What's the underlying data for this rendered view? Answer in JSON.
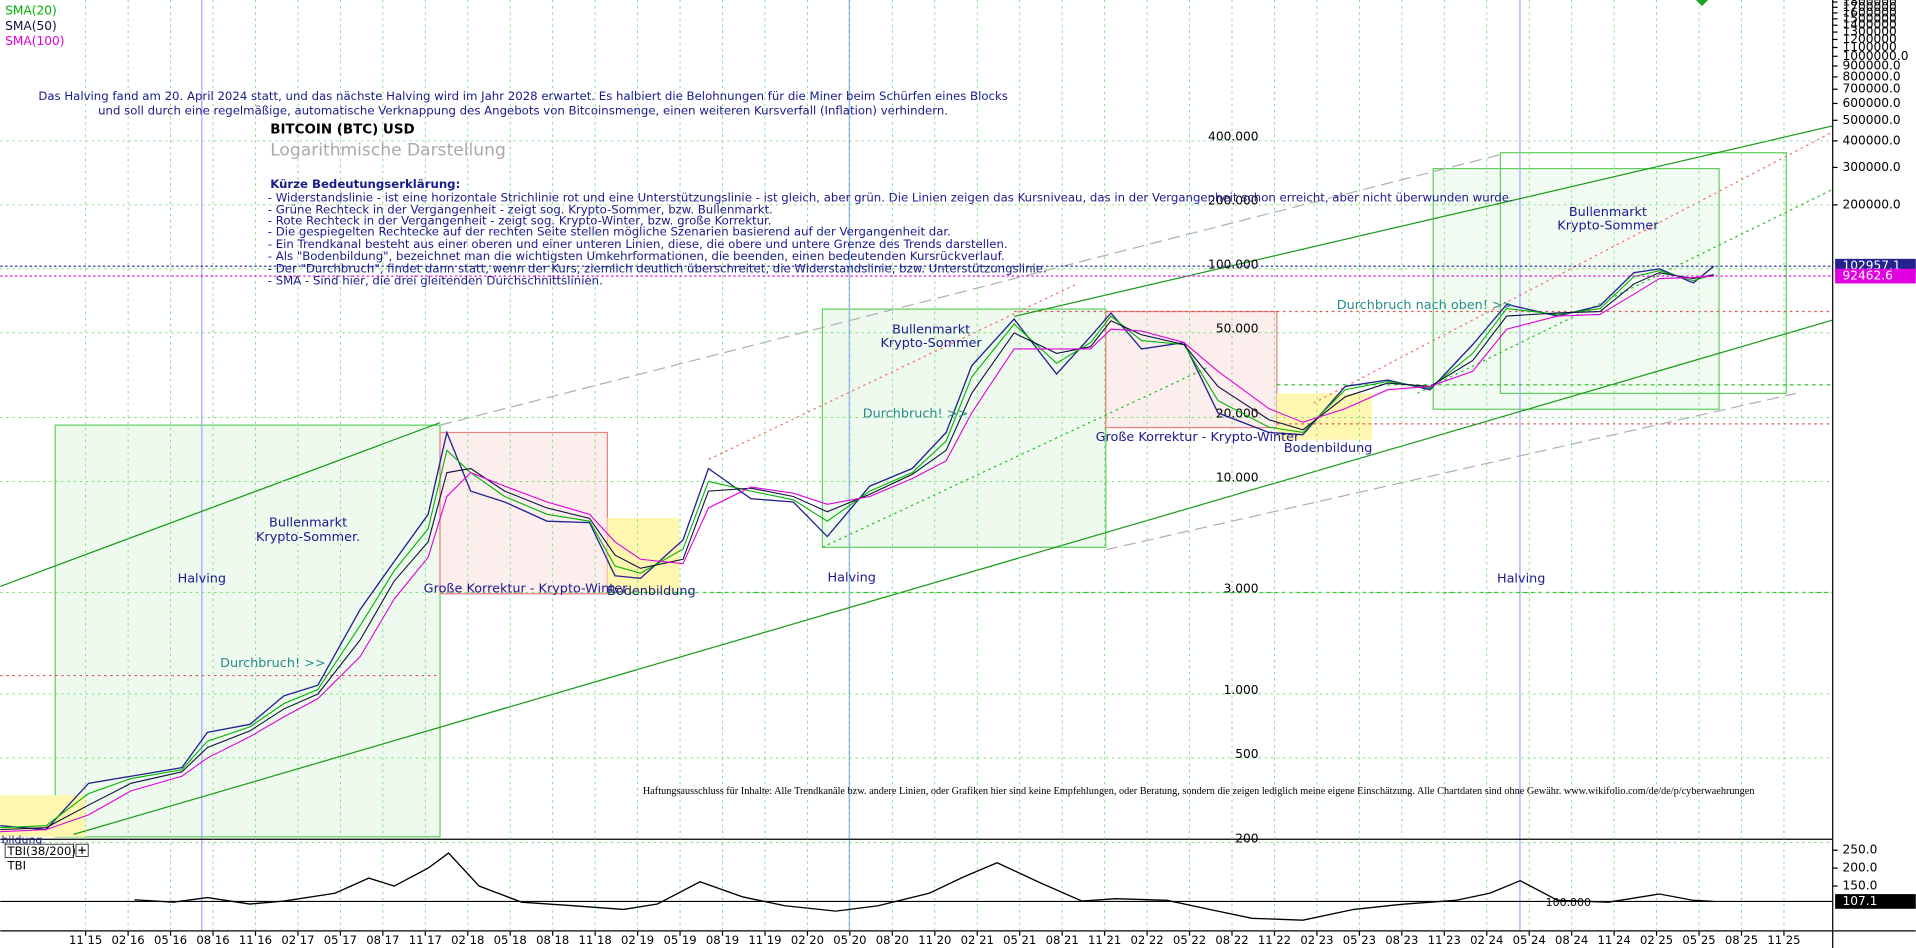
{
  "chart_data": [
    {
      "type": "line",
      "title": "BITCOIN (BTC) USD",
      "subtitle": "Logarithmische Darstellung",
      "log_scale": true,
      "grid": true,
      "xlim": [
        2015.33,
        2026.12
      ],
      "ylim": [
        210,
        1840000
      ],
      "xticks": [
        {
          "value": 2015.833,
          "label": "11 15"
        },
        {
          "value": 2016.083,
          "label": "02 16"
        },
        {
          "value": 2016.333,
          "label": "05 16"
        },
        {
          "value": 2016.583,
          "label": "08 16"
        },
        {
          "value": 2016.833,
          "label": "11 16"
        },
        {
          "value": 2017.083,
          "label": "02 17"
        },
        {
          "value": 2017.333,
          "label": "05 17"
        },
        {
          "value": 2017.583,
          "label": "08 17"
        },
        {
          "value": 2017.833,
          "label": "11 17"
        },
        {
          "value": 2018.083,
          "label": "02 18"
        },
        {
          "value": 2018.333,
          "label": "05 18"
        },
        {
          "value": 2018.583,
          "label": "08 18"
        },
        {
          "value": 2018.833,
          "label": "11 18"
        },
        {
          "value": 2019.083,
          "label": "02 19"
        },
        {
          "value": 2019.333,
          "label": "05 19"
        },
        {
          "value": 2019.583,
          "label": "08 19"
        },
        {
          "value": 2019.833,
          "label": "11 19"
        },
        {
          "value": 2020.083,
          "label": "02 20"
        },
        {
          "value": 2020.333,
          "label": "05 20"
        },
        {
          "value": 2020.583,
          "label": "08 20"
        },
        {
          "value": 2020.833,
          "label": "11 20"
        },
        {
          "value": 2021.083,
          "label": "02 21"
        },
        {
          "value": 2021.333,
          "label": "05 21"
        },
        {
          "value": 2021.583,
          "label": "08 21"
        },
        {
          "value": 2021.833,
          "label": "11 21"
        },
        {
          "value": 2022.083,
          "label": "02 22"
        },
        {
          "value": 2022.333,
          "label": "05 22"
        },
        {
          "value": 2022.583,
          "label": "08 22"
        },
        {
          "value": 2022.833,
          "label": "11 22"
        },
        {
          "value": 2023.083,
          "label": "02 23"
        },
        {
          "value": 2023.333,
          "label": "05 23"
        },
        {
          "value": 2023.583,
          "label": "08 23"
        },
        {
          "value": 2023.833,
          "label": "11 23"
        },
        {
          "value": 2024.083,
          "label": "02 24"
        },
        {
          "value": 2024.333,
          "label": "05 24"
        },
        {
          "value": 2024.583,
          "label": "08 24"
        },
        {
          "value": 2024.833,
          "label": "11 24"
        },
        {
          "value": 2025.083,
          "label": "02 25"
        },
        {
          "value": 2025.333,
          "label": "05 25"
        },
        {
          "value": 2025.583,
          "label": "08 25"
        },
        {
          "value": 2025.833,
          "label": "11 25"
        }
      ],
      "yticks": [
        {
          "value": 400000,
          "label": "400.000"
        },
        {
          "value": 200000,
          "label": "200.000"
        },
        {
          "value": 100000,
          "label": "100.000"
        },
        {
          "value": 50000,
          "label": "50.000"
        },
        {
          "value": 20000,
          "label": "20.000"
        },
        {
          "value": 10000,
          "label": "10.000"
        },
        {
          "value": 3000,
          "label": "3.000"
        },
        {
          "value": 1000,
          "label": "1.000"
        },
        500,
        200
      ],
      "y2ticks": [
        1900000,
        1800000,
        1700000,
        1600000,
        1500000,
        1400000,
        1300000,
        1200000,
        1100000,
        {
          "value": 1000000,
          "label": "1000000.0"
        },
        {
          "value": 900000,
          "label": "900000.0"
        },
        {
          "value": 800000,
          "label": "800000.0"
        },
        {
          "value": 700000,
          "label": "700000.0"
        },
        {
          "value": 600000,
          "label": "600000.0"
        },
        {
          "value": 500000,
          "label": "500000.0"
        },
        {
          "value": 400000,
          "label": "400000.0"
        },
        {
          "value": 300000,
          "label": "300000.0"
        },
        {
          "value": 200000,
          "label": "200000.0"
        }
      ],
      "x": [
        2015.33,
        2015.6,
        2015.85,
        2016.1,
        2016.4,
        2016.55,
        2016.8,
        2017.0,
        2017.2,
        2017.45,
        2017.65,
        2017.85,
        2017.96,
        2018.1,
        2018.3,
        2018.55,
        2018.8,
        2018.95,
        2019.1,
        2019.35,
        2019.5,
        2019.75,
        2020.0,
        2020.2,
        2020.45,
        2020.7,
        2020.9,
        2021.05,
        2021.3,
        2021.55,
        2021.75,
        2021.87,
        2022.05,
        2022.3,
        2022.5,
        2022.8,
        2023.0,
        2023.25,
        2023.5,
        2023.75,
        2024.0,
        2024.2,
        2024.5,
        2024.75,
        2024.95,
        2025.1,
        2025.3,
        2025.42
      ],
      "series": [
        {
          "color": "#23238f",
          "last_value_box": true,
          "values": [
            240,
            230,
            380,
            410,
            450,
            660,
            720,
            980,
            1100,
            2500,
            4200,
            7000,
            17000,
            9000,
            8000,
            6500,
            6400,
            3600,
            3500,
            5300,
            11500,
            8300,
            8000,
            5500,
            9500,
            11500,
            17000,
            35000,
            58000,
            32000,
            48000,
            62000,
            42000,
            45000,
            21000,
            17000,
            16600,
            28000,
            30000,
            27000,
            44000,
            68000,
            60000,
            67000,
            96000,
            100000,
            86000,
            102957.1
          ]
        },
        {
          "name": "SMA(20)",
          "color": "#00b400",
          "last_value_box": false,
          "values": [
            235,
            240,
            340,
            400,
            440,
            600,
            700,
            900,
            1050,
            2100,
            3800,
            6000,
            14000,
            11000,
            8500,
            7000,
            6500,
            4000,
            3700,
            4800,
            10000,
            9000,
            8200,
            6500,
            9000,
            11000,
            15500,
            31000,
            55000,
            36000,
            45000,
            60000,
            46000,
            44000,
            24000,
            18000,
            17000,
            27000,
            29500,
            27500,
            40000,
            65000,
            61000,
            65000,
            92000,
            98000,
            88000,
            94000
          ]
        },
        {
          "name": "SMA(50)",
          "color": "#101040",
          "last_value_box": false,
          "values": [
            230,
            235,
            300,
            380,
            430,
            560,
            670,
            850,
            1000,
            1800,
            3400,
            5200,
            11000,
            11500,
            9000,
            7500,
            6700,
            4500,
            3900,
            4300,
            9000,
            9300,
            8500,
            7200,
            8700,
            10800,
            14000,
            26000,
            50000,
            40000,
            43000,
            57000,
            49000,
            44000,
            28000,
            19500,
            17500,
            25000,
            29000,
            28000,
            37000,
            60000,
            62000,
            63000,
            85000,
            96000,
            90000,
            94000
          ]
        },
        {
          "name": "SMA(100)",
          "color": "#e000e0",
          "last_value_box": true,
          "values": [
            225,
            230,
            270,
            350,
            410,
            500,
            630,
            780,
            950,
            1500,
            2800,
            4400,
            8500,
            11000,
            9500,
            8000,
            7000,
            5200,
            4300,
            4100,
            7500,
            9400,
            8800,
            7800,
            8500,
            10300,
            12500,
            21000,
            42000,
            42000,
            42000,
            52000,
            51000,
            45000,
            33000,
            22000,
            19000,
            22000,
            27000,
            28000,
            33000,
            52000,
            60000,
            61000,
            76000,
            90000,
            91000,
            92462.6
          ]
        }
      ]
    },
    {
      "type": "line",
      "indicator": "TBI",
      "log_scale": false,
      "xlim": [
        2015.33,
        2026.12
      ],
      "ylim": [
        25,
        277
      ],
      "yticks": [
        {
          "value": 250,
          "label": "250.0"
        },
        {
          "value": 200,
          "label": "200.0"
        },
        {
          "value": 150,
          "label": "150.0"
        }
      ],
      "x": [
        2016.12,
        2016.35,
        2016.55,
        2016.8,
        2017.0,
        2017.3,
        2017.5,
        2017.65,
        2017.85,
        2017.97,
        2018.15,
        2018.4,
        2018.7,
        2019.0,
        2019.2,
        2019.45,
        2019.7,
        2019.95,
        2020.25,
        2020.5,
        2020.8,
        2021.0,
        2021.2,
        2021.45,
        2021.7,
        2021.9,
        2022.2,
        2022.45,
        2022.7,
        2023.0,
        2023.3,
        2023.6,
        2023.9,
        2024.1,
        2024.28,
        2024.5,
        2024.8,
        2025.1,
        2025.3,
        2025.42
      ],
      "series": [
        {
          "name": "TBI(38/200)",
          "color": "#000000",
          "last_value_box": true,
          "values": [
            112,
            105,
            118,
            100,
            108,
            130,
            172,
            150,
            200,
            242,
            150,
            105,
            95,
            85,
            100,
            162,
            120,
            95,
            80,
            95,
            130,
            175,
            215,
            160,
            108,
            115,
            110,
            85,
            60,
            55,
            85,
            100,
            110,
            130,
            165,
            110,
            105,
            128,
            110,
            107.1
          ]
        }
      ],
      "level_label": "100.000"
    }
  ],
  "notes": {
    "halving": [
      "Das Halving fand am 20. April 2024 statt, und das nächste Halving wird im Jahr 2028 erwartet. Es halbiert die Belohnungen für die Miner beim Schürfen eines Blocks",
      "und soll durch eine regelmäßige, automatische Verknappung des Angebots von Bitcoinsmenge, einen weiteren Kursverfall (Inflation) verhindern."
    ],
    "legend_title": "Kürze Bedeutungserklärung:",
    "legend_lines": [
      "- Widerstandslinie - ist eine horizontale Strichlinie rot und eine Unterstützungslinie - ist gleich, aber grün. Die Linien zeigen das Kursniveau, das in der Vergangenheit schon erreicht, aber nicht überwunden wurde.",
      "- Grüne Rechteck in der Vergangenheit - zeigt sog. Krypto-Sommer, bzw. Bullenmarkt.",
      "- Rote Rechteck in der Vergangenheit - zeigt sog. Krypto-Winter, bzw. große Korrektur.",
      "- Die gespiegelten Rechtecke auf der rechten Seite stellen mögliche Szenarien basierend auf der Vergangenheit dar.",
      "- Ein Trendkanal besteht aus einer oberen und einer unteren Linien, diese, die obere und untere Grenze des Trends darstellen.",
      "- Als \"Bodenbildung\", bezeichnet man die wichtigsten Umkehrformationen, die beenden, einen bedeutenden Kursrückverlauf.",
      "- Der \"Durchbruch\", findet dann statt, wenn der Kurs, ziemlich deutlich überschreitet, die Widerstandslinie, bzw. Unterstützungslinie.",
      "- SMA - Sind hier, die drei gleitenden Durchschnittslinien."
    ],
    "labels": [
      "Bullenmarkt",
      "Krypto-Sommer.",
      "Halving",
      "Halving",
      "Halving",
      "Durchbruch! >>",
      "Durchbruch! >>",
      "Durchbruch nach oben! >>",
      "Große Korrektur - Krypto-Winter",
      "Große Korrektur - Krypto-Winter",
      "Bodenbildung",
      "Bodenbildung",
      "bildung",
      "Bullenmarkt",
      "Krypto-Sommer",
      "Bullenmarkt",
      "Krypto-Sommer"
    ],
    "disclaimer": "Haftungsausschluss für Inhalte: Alle Trendkanäle bzw. andere Linien, oder Grafiken hier sind keine Empfehlungen, oder Beratung, sondern die zeigen lediglich meine eigene Einschätzung. Alle Chartdaten sind ohne Gewähr.  www.wikifolio.com/de/de/p/cyberwaehrungen"
  }
}
